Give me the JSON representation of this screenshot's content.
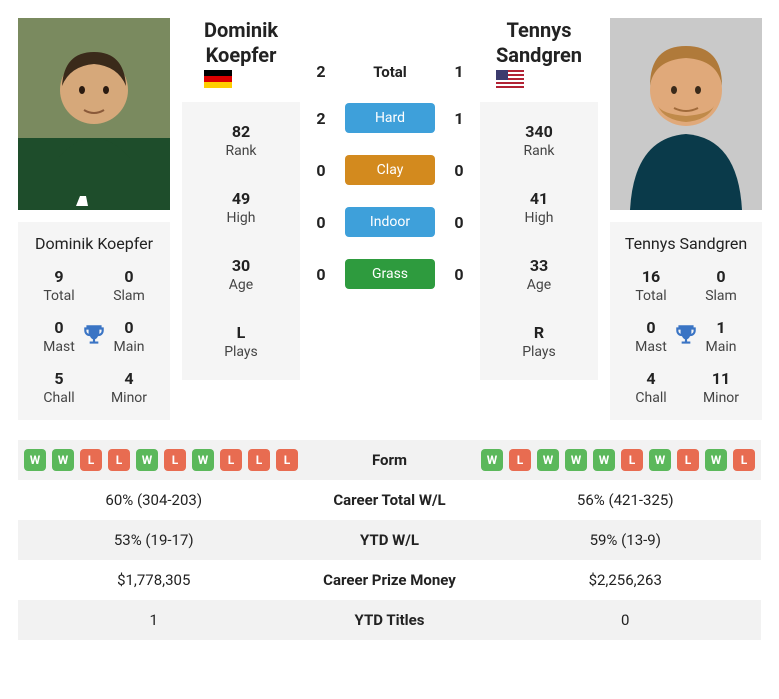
{
  "player1": {
    "name_line1": "Dominik",
    "name_line2": "Koepfer",
    "card_name": "Dominik Koepfer",
    "flag": "de",
    "photo": {
      "bg": "#6a7a5a",
      "shirt": "#1e4d2b",
      "skin": "#d6a87a",
      "hair": "#3a2a1a"
    },
    "stats": {
      "total": {
        "val": "9",
        "label": "Total"
      },
      "slam": {
        "val": "0",
        "label": "Slam"
      },
      "mast": {
        "val": "0",
        "label": "Mast"
      },
      "main": {
        "val": "0",
        "label": "Main"
      },
      "chall": {
        "val": "5",
        "label": "Chall"
      },
      "minor": {
        "val": "4",
        "label": "Minor"
      }
    },
    "rank": {
      "val": "82",
      "label": "Rank"
    },
    "high": {
      "val": "49",
      "label": "High"
    },
    "age": {
      "val": "30",
      "label": "Age"
    },
    "plays": {
      "val": "L",
      "label": "Plays"
    },
    "form": [
      "W",
      "W",
      "L",
      "L",
      "W",
      "L",
      "W",
      "L",
      "L",
      "L"
    ]
  },
  "player2": {
    "name_line1": "Tennys",
    "name_line2": "Sandgren",
    "card_name": "Tennys Sandgren",
    "flag": "us",
    "photo": {
      "bg": "#c7c7c7",
      "shirt": "#0a3a4a",
      "skin": "#e0a97a",
      "hair": "#b07a3a"
    },
    "stats": {
      "total": {
        "val": "16",
        "label": "Total"
      },
      "slam": {
        "val": "0",
        "label": "Slam"
      },
      "mast": {
        "val": "0",
        "label": "Mast"
      },
      "main": {
        "val": "1",
        "label": "Main"
      },
      "chall": {
        "val": "4",
        "label": "Chall"
      },
      "minor": {
        "val": "11",
        "label": "Minor"
      }
    },
    "rank": {
      "val": "340",
      "label": "Rank"
    },
    "high": {
      "val": "41",
      "label": "High"
    },
    "age": {
      "val": "33",
      "label": "Age"
    },
    "plays": {
      "val": "R",
      "label": "Plays"
    },
    "form": [
      "W",
      "L",
      "W",
      "W",
      "W",
      "L",
      "W",
      "L",
      "W",
      "L"
    ]
  },
  "h2h": {
    "total_label": "Total",
    "rows": [
      {
        "label": "Hard",
        "color": "#3ea0da",
        "p1": "2",
        "p2": "1"
      },
      {
        "label": "Clay",
        "color": "#d38a1e",
        "p1": "0",
        "p2": "0"
      },
      {
        "label": "Indoor",
        "color": "#3ea0da",
        "p1": "0",
        "p2": "0"
      },
      {
        "label": "Grass",
        "color": "#2e9b3e",
        "p1": "0",
        "p2": "0"
      }
    ],
    "total": {
      "p1": "2",
      "p2": "1"
    }
  },
  "bottom": {
    "form_label": "Form",
    "rows": [
      {
        "label": "Career Total W/L",
        "p1": "60% (304-203)",
        "p2": "56% (421-325)"
      },
      {
        "label": "YTD W/L",
        "p1": "53% (19-17)",
        "p2": "59% (13-9)"
      },
      {
        "label": "Career Prize Money",
        "p1": "$1,778,305",
        "p2": "$2,256,263"
      },
      {
        "label": "YTD Titles",
        "p1": "1",
        "p2": "0"
      }
    ]
  },
  "trophy_color": "#3a74c4"
}
